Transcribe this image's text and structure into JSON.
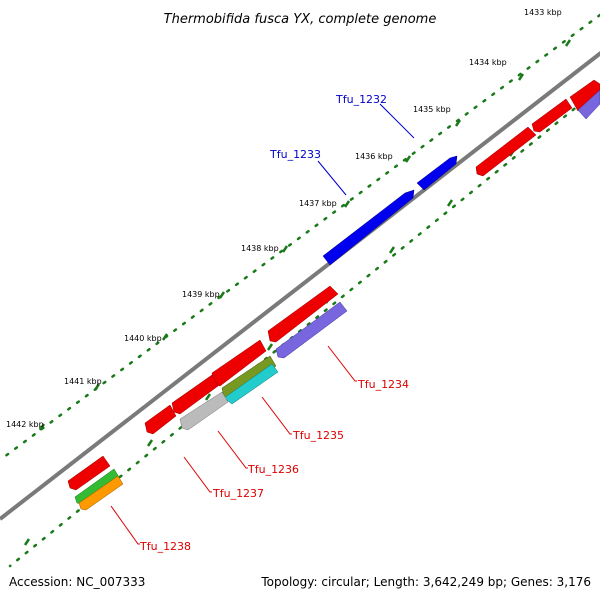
{
  "title": "Thermobifida fusca YX, complete genome",
  "ticks": [
    "1433 kbp",
    "1434 kbp",
    "1435 kbp",
    "1436 kbp",
    "1437 kbp",
    "1438 kbp",
    "1439 kbp",
    "1440 kbp",
    "1441 kbp",
    "1442 kbp"
  ],
  "genes": {
    "tfu_1232": "Tfu_1232",
    "tfu_1233": "Tfu_1233",
    "tfu_1234": "Tfu_1234",
    "tfu_1235": "Tfu_1235",
    "tfu_1236": "Tfu_1236",
    "tfu_1237": "Tfu_1237",
    "tfu_1238": "Tfu_1238"
  },
  "footer": {
    "accession": "Accession: NC_007333",
    "summary": "Topology: circular; Length: 3,642,249 bp; Genes: 3,176"
  },
  "colors": {
    "forward_label": "#0000cc",
    "reverse_label": "#dd0000",
    "backbone": "#7a7a7a",
    "tick": "#1a7a1a",
    "cds_red": "#ee0000",
    "cds_blue": "#0000ee",
    "cds_purple": "#7766dd",
    "cds_green": "#33bb33",
    "cds_orange": "#ff9900",
    "cds_gray": "#bbbbbb",
    "cds_cyan": "#22cccc",
    "cds_olive": "#779922"
  }
}
